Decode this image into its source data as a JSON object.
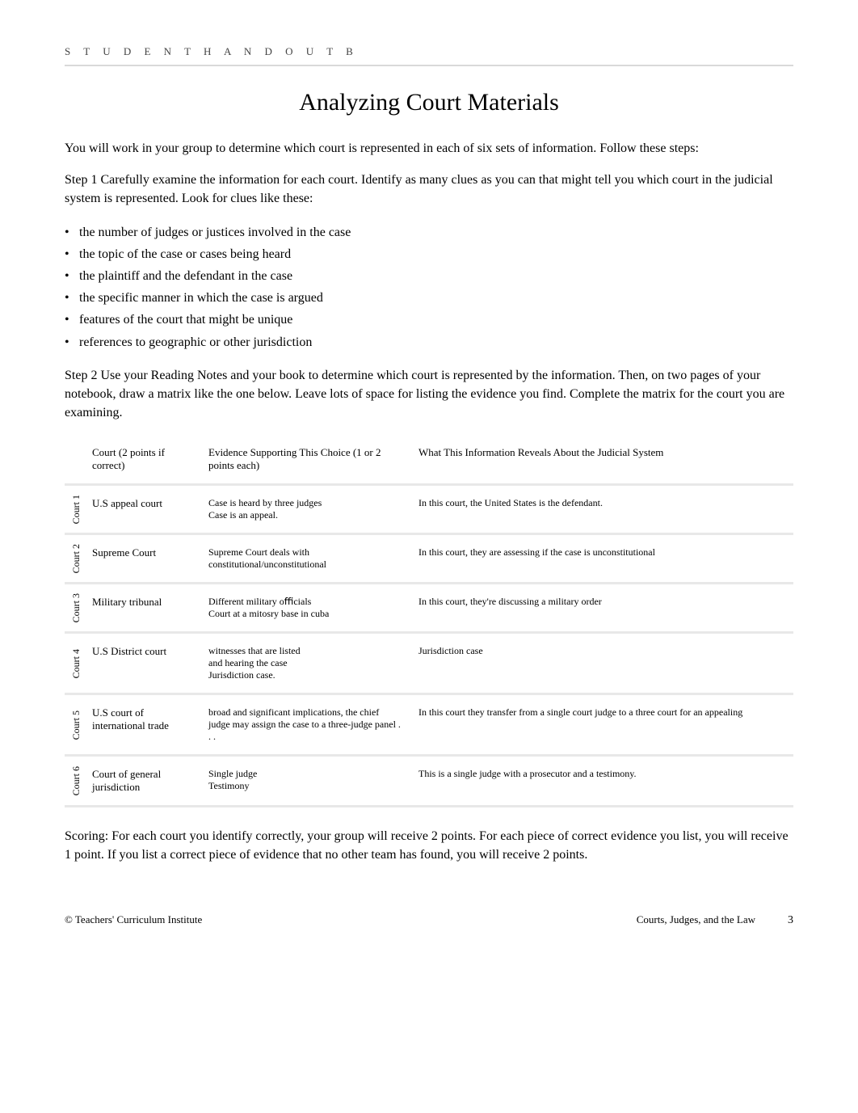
{
  "header_band": "S T U D E N T  H A N D O U T     B",
  "page_title": "Analyzing Court Materials",
  "intro": "You will work in your group to determine which court is represented in each of six sets of information. Follow these steps:",
  "step1": "Step 1  Carefully examine the information for each court. Identify as many clues as you can that might tell you which court in the judicial system is represented. Look for clues like these:",
  "clues": [
    "the number of judges or justices involved in the case",
    "the topic of the case or cases being heard",
    "the plaintiff and the defendant in the case",
    "the specific manner in which the case is argued",
    "features of the court that might be unique",
    "references to geographic or other jurisdiction"
  ],
  "step2": "Step 2  Use your Reading Notes and your book to determine which court is represented by the information. Then, on two pages of your notebook, draw a matrix like the one below. Leave lots of space for listing the evidence you find. Complete the matrix for the court you are examining.",
  "matrix": {
    "headers": {
      "court": "Court  (2 points if correct)",
      "evidence": "Evidence Supporting This Choice   (1 or 2 points each)",
      "reveal": "What This Information Reveals About the Judicial System"
    },
    "rows": [
      {
        "vlabel": "Court 1",
        "court": "U.S appeal court",
        "evidence": "Case is heard by three judges\nCase is an appeal.",
        "reveal": "In this court, the United States is the defendant."
      },
      {
        "vlabel": "Court 2",
        "court": "Supreme Court",
        "evidence": "Supreme Court deals with constitutional/unconstitutional",
        "reveal": "In this court, they are assessing if the case is unconstitutional"
      },
      {
        "vlabel": "Court 3",
        "court": "Military tribunal",
        "evidence": "Different military oﬃcials\nCourt at a mitosry base in cuba",
        "reveal": "In this court, they're discussing a military order"
      },
      {
        "vlabel": "Court 4",
        "court": "U.S District court",
        "evidence": "witnesses that are listed\nand hearing the case\nJurisdiction case.",
        "reveal": "Jurisdiction case"
      },
      {
        "vlabel": "Court 5",
        "court": "U.S court of international trade",
        "evidence": "broad and significant implications, the chief judge may assign the case to a three-judge panel . . .",
        "reveal": "In this court they transfer from a single court judge to a three court for an appealing"
      },
      {
        "vlabel": "Court 6",
        "court": "Court of general jurisdiction",
        "evidence": "Single judge\nTestimony",
        "reveal": "This is a single judge with a prosecutor and a testimony."
      }
    ]
  },
  "scoring": "Scoring: For each court you identify correctly, your group will receive 2 points. For each piece of correct evidence you list, you will receive 1 point. If you list a correct piece of evidence that no other team has found, you will receive 2 points.",
  "footer": {
    "left": "© Teachers' Curriculum Institute",
    "right_title": "Courts, Judges, and the Law",
    "page_number": "3"
  },
  "colors": {
    "rule": "#d9d9d9",
    "table_rule": "#e8e8e8",
    "text": "#000000",
    "muted": "#444444",
    "background": "#ffffff"
  }
}
